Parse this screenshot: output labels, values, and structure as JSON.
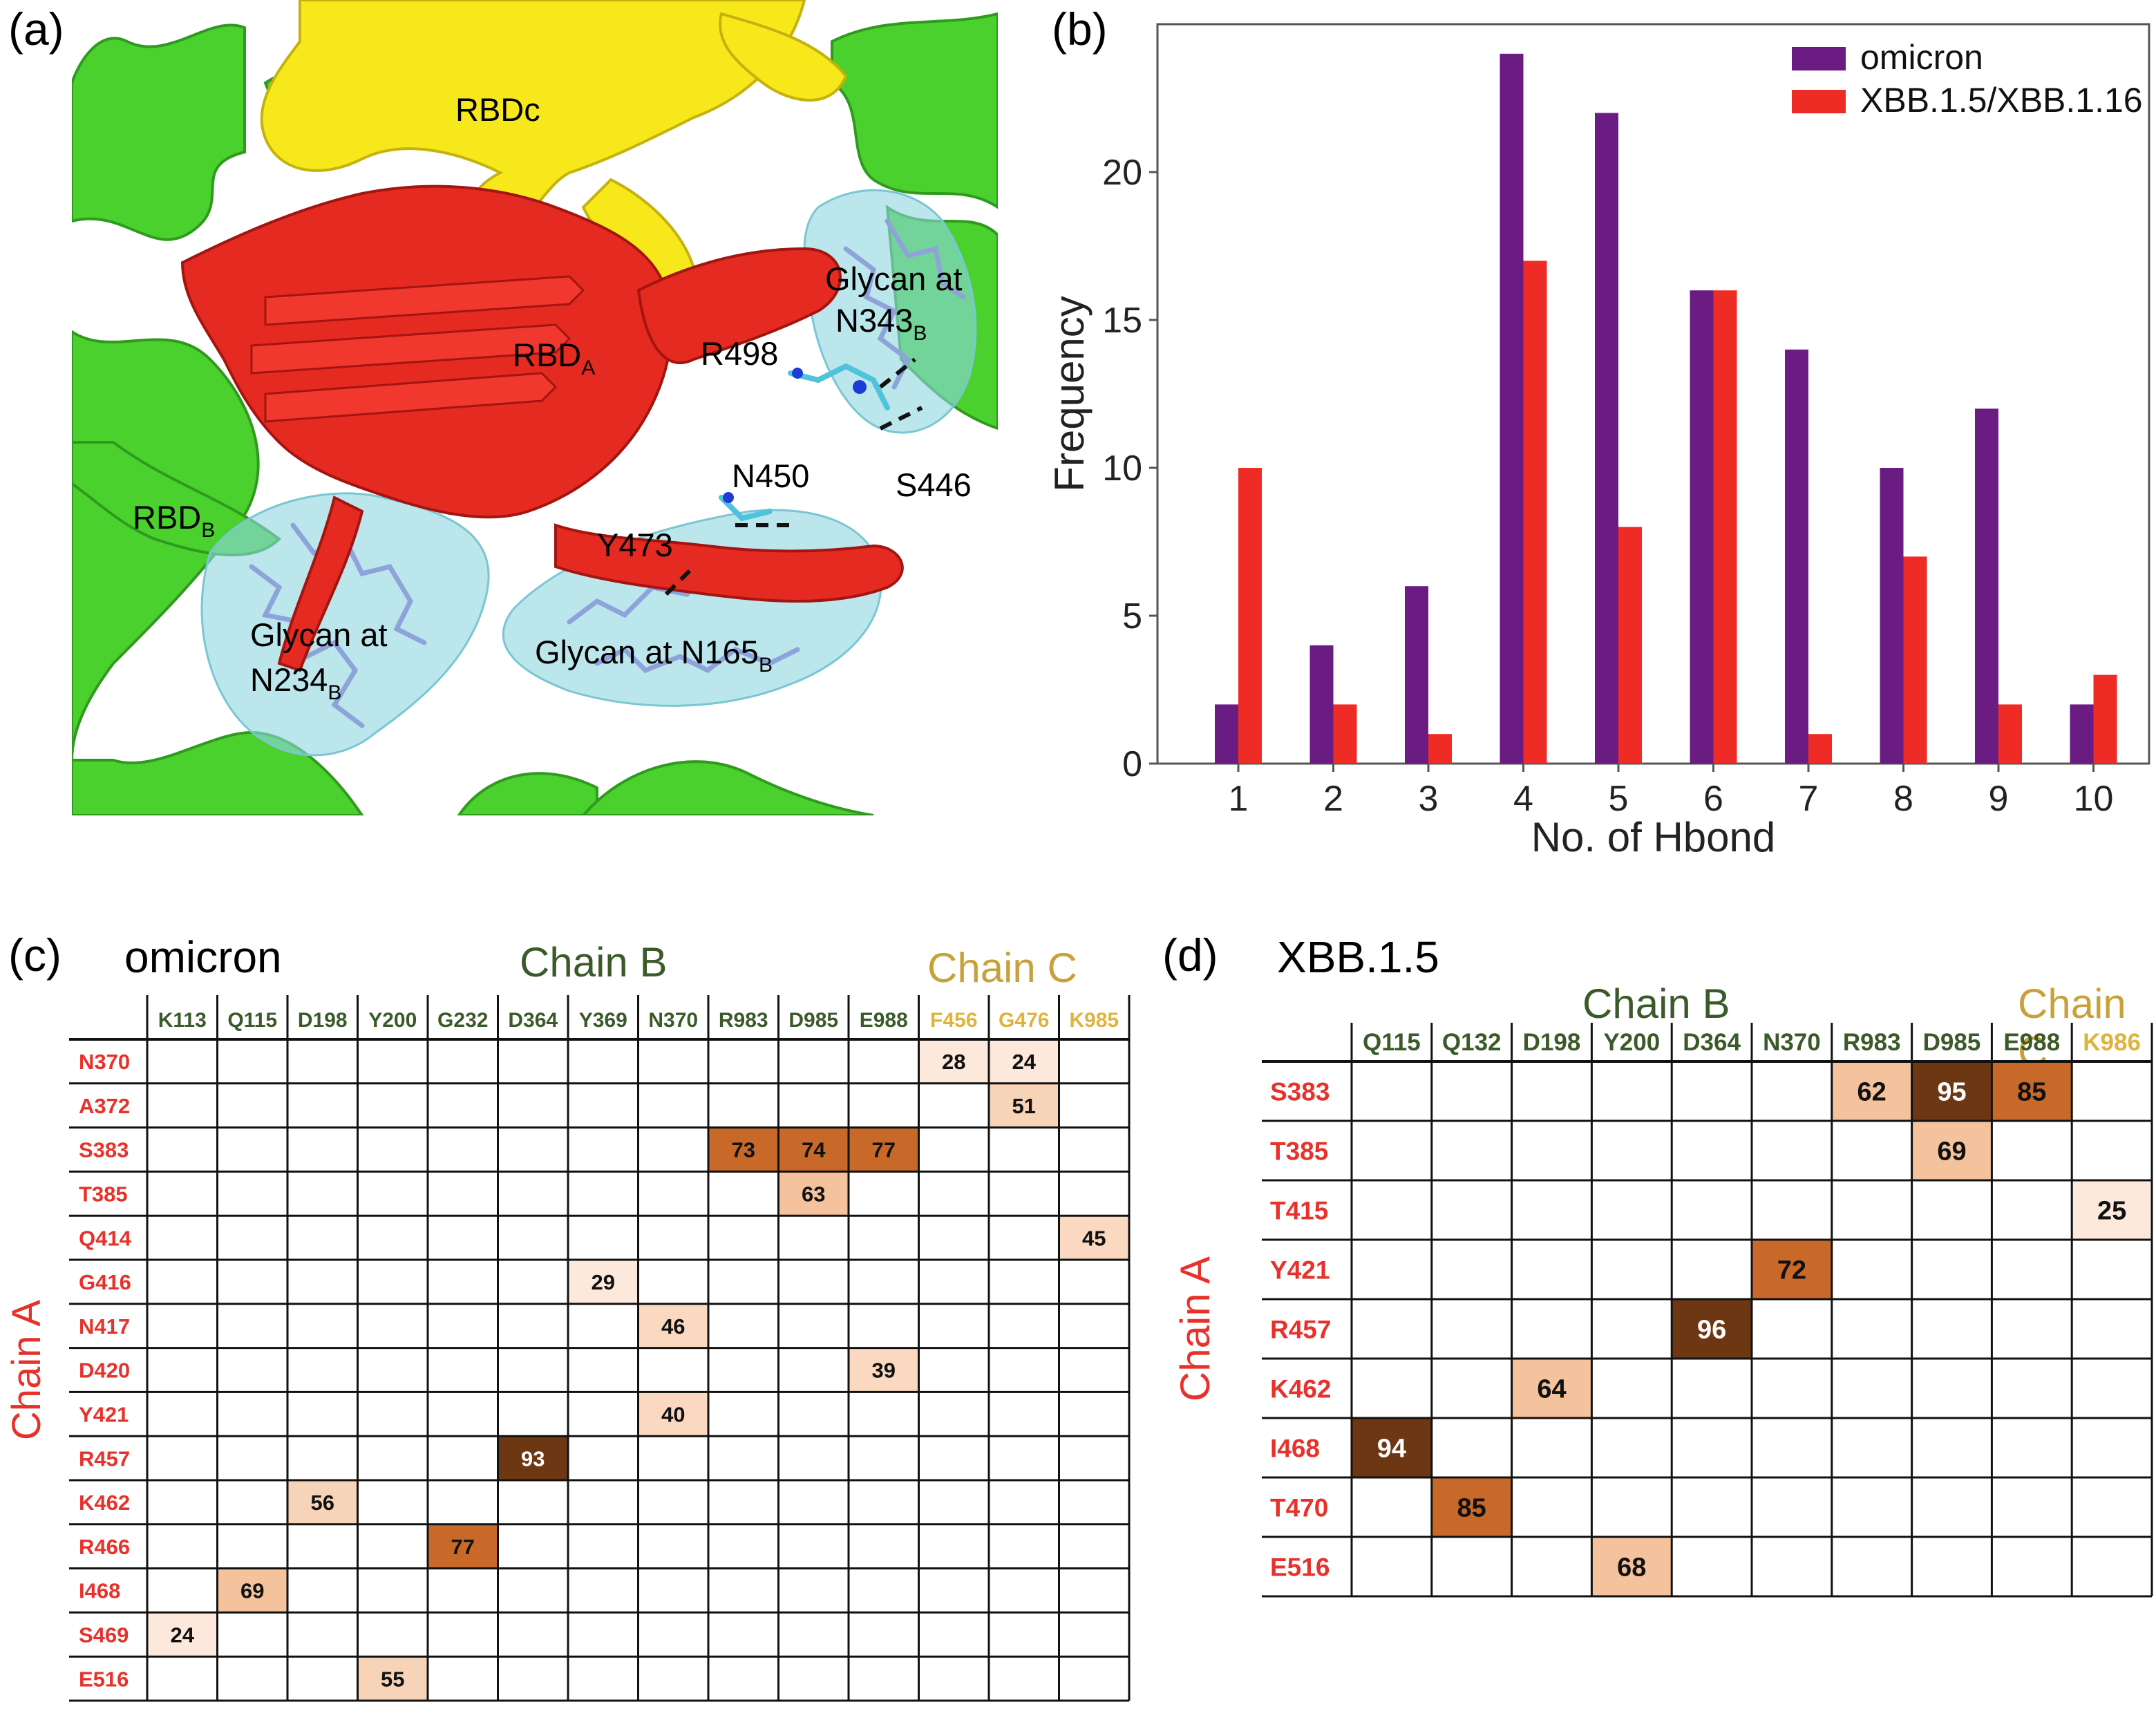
{
  "panel_labels": {
    "a": "(a)",
    "b": "(b)",
    "c": "(c)",
    "d": "(d)"
  },
  "molecule": {
    "labels": [
      {
        "text": "RBDc",
        "sub": ""
      },
      {
        "text": "RBD",
        "sub": "A"
      },
      {
        "text": "R498",
        "sub": ""
      },
      {
        "text": "Glycan at",
        "sub": ""
      },
      {
        "text": "N343",
        "sub": "B"
      },
      {
        "text": "N450",
        "sub": ""
      },
      {
        "text": "S446",
        "sub": ""
      },
      {
        "text": "RBD",
        "sub": "B"
      },
      {
        "text": "Y473",
        "sub": ""
      },
      {
        "text": "Glycan at",
        "sub": ""
      },
      {
        "text": "N234",
        "sub": "B"
      },
      {
        "text": "Glycan at N165",
        "sub": "B"
      }
    ]
  },
  "chart_data": [
    {
      "type": "bar",
      "title": "",
      "xlabel": "No. of Hbond",
      "ylabel": "Frequency",
      "categories": [
        "1",
        "2",
        "3",
        "4",
        "5",
        "6",
        "7",
        "8",
        "9",
        "10"
      ],
      "ylim": [
        0,
        25
      ],
      "yticks": [
        "0",
        "5",
        "10",
        "15",
        "20"
      ],
      "legend_position": "top-right",
      "colors": {
        "omicron": "#6b1c82",
        "xbb": "#ee2c25"
      },
      "series": [
        {
          "name": "omicron",
          "values": [
            2,
            4,
            6,
            24,
            22,
            16,
            14,
            10,
            12,
            2
          ]
        },
        {
          "name": "XBB.1.5/XBB.1.16",
          "values": [
            10,
            2,
            1,
            17,
            8,
            16,
            1,
            7,
            2,
            3
          ]
        }
      ]
    },
    {
      "type": "heatmap",
      "title": "omicron",
      "chain_b_label": "Chain B",
      "chain_c_label": "Chain C",
      "row_axis_label": "Chain A",
      "columns": [
        "K113",
        "Q115",
        "D198",
        "Y200",
        "G232",
        "D364",
        "Y369",
        "N370",
        "R983",
        "D985",
        "E988",
        "F456",
        "G476",
        "K985"
      ],
      "chain_c_columns": [
        "F456",
        "G476",
        "K985"
      ],
      "rows": [
        "N370",
        "A372",
        "S383",
        "T385",
        "Q414",
        "G416",
        "N417",
        "D420",
        "Y421",
        "R457",
        "K462",
        "R466",
        "I468",
        "S469",
        "E516"
      ],
      "cells": [
        {
          "row": "N370",
          "col": "F456",
          "value": 28
        },
        {
          "row": "N370",
          "col": "G476",
          "value": 24
        },
        {
          "row": "A372",
          "col": "G476",
          "value": 51
        },
        {
          "row": "S383",
          "col": "R983",
          "value": 73
        },
        {
          "row": "S383",
          "col": "D985",
          "value": 74
        },
        {
          "row": "S383",
          "col": "E988",
          "value": 77
        },
        {
          "row": "T385",
          "col": "D985",
          "value": 63
        },
        {
          "row": "Q414",
          "col": "K985",
          "value": 45
        },
        {
          "row": "G416",
          "col": "Y369",
          "value": 29
        },
        {
          "row": "N417",
          "col": "N370",
          "value": 46
        },
        {
          "row": "D420",
          "col": "E988",
          "value": 39
        },
        {
          "row": "Y421",
          "col": "N370",
          "value": 40
        },
        {
          "row": "R457",
          "col": "D364",
          "value": 93
        },
        {
          "row": "K462",
          "col": "D198",
          "value": 56
        },
        {
          "row": "R466",
          "col": "G232",
          "value": 77
        },
        {
          "row": "I468",
          "col": "Q115",
          "value": 69
        },
        {
          "row": "S469",
          "col": "K113",
          "value": 24
        },
        {
          "row": "E516",
          "col": "Y200",
          "value": 55
        }
      ]
    },
    {
      "type": "heatmap",
      "title": "XBB.1.5",
      "chain_b_label": "Chain B",
      "chain_c_label": "Chain C",
      "row_axis_label": "Chain A",
      "columns": [
        "Q115",
        "Q132",
        "D198",
        "Y200",
        "D364",
        "N370",
        "R983",
        "D985",
        "E988",
        "K986"
      ],
      "chain_c_columns": [
        "K986"
      ],
      "rows": [
        "S383",
        "T385",
        "T415",
        "Y421",
        "R457",
        "K462",
        "I468",
        "T470",
        "E516"
      ],
      "cells": [
        {
          "row": "S383",
          "col": "R983",
          "value": 62
        },
        {
          "row": "S383",
          "col": "D985",
          "value": 95
        },
        {
          "row": "S383",
          "col": "E988",
          "value": 85
        },
        {
          "row": "T385",
          "col": "D985",
          "value": 69
        },
        {
          "row": "T415",
          "col": "K986",
          "value": 25
        },
        {
          "row": "Y421",
          "col": "N370",
          "value": 72
        },
        {
          "row": "R457",
          "col": "D364",
          "value": 96
        },
        {
          "row": "K462",
          "col": "D198",
          "value": 64
        },
        {
          "row": "I468",
          "col": "Q115",
          "value": 94
        },
        {
          "row": "T470",
          "col": "Q132",
          "value": 85
        },
        {
          "row": "E516",
          "col": "Y200",
          "value": 68
        }
      ]
    }
  ],
  "colors": {
    "row_label": "#e8312a",
    "chain_b": "#3b5a2a",
    "chain_c": "#c9a13a",
    "chain_c_cols": "#e0b33c"
  }
}
